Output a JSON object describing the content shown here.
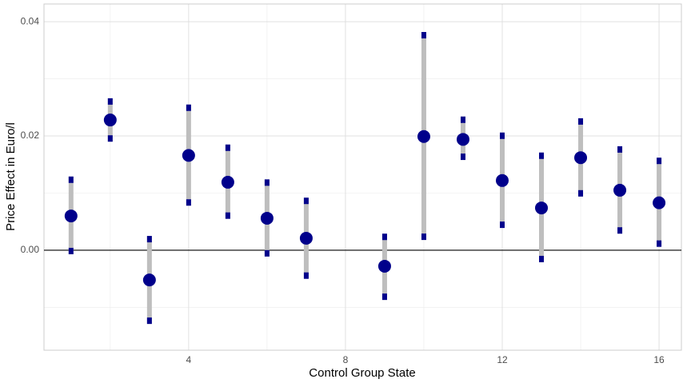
{
  "chart_data": {
    "type": "pointrange",
    "x_label": "Control Group State",
    "y_label": "Price Effect in Euro/l",
    "x": [
      1,
      2,
      3,
      4,
      5,
      6,
      7,
      9,
      10,
      11,
      12,
      13,
      14,
      15,
      16
    ],
    "values": [
      0.006,
      0.0228,
      -0.0052,
      0.0166,
      0.0119,
      0.0056,
      0.0021,
      -0.0028,
      0.0199,
      0.0194,
      0.0122,
      0.0074,
      0.0162,
      0.0105,
      0.0083
    ],
    "lower": [
      -0.0007,
      0.019,
      -0.0129,
      0.0078,
      0.0055,
      -0.0011,
      -0.005,
      -0.0087,
      0.0018,
      0.0158,
      0.0039,
      -0.0021,
      0.0094,
      0.0029,
      0.0006
    ],
    "upper": [
      0.0129,
      0.0266,
      0.0025,
      0.0255,
      0.0185,
      0.0124,
      0.0092,
      0.0029,
      0.0382,
      0.0234,
      0.0206,
      0.0171,
      0.0231,
      0.0182,
      0.0162
    ],
    "point_color": "#00008b",
    "interval_color": "#bebebe",
    "cap_color": "#00008b",
    "xlim": [
      0.31,
      16.57
    ],
    "ylim": [
      -0.0175,
      0.0431
    ],
    "xticks": [
      4,
      8,
      12,
      16
    ],
    "yticks": [
      {
        "value": 0,
        "label": "0.00"
      },
      {
        "value": 0.02,
        "label": "0.02"
      },
      {
        "value": 0.04,
        "label": "0.04"
      }
    ],
    "x_minor_ticks": [
      2,
      6,
      10,
      14
    ],
    "y_minor_ticks": [
      -0.01,
      0.01,
      0.03
    ],
    "hline": 0,
    "grid": true
  }
}
